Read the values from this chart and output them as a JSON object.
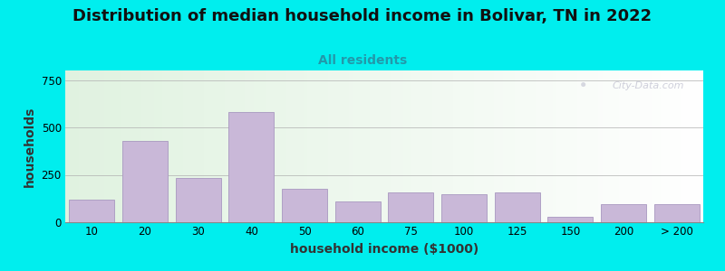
{
  "title": "Distribution of median household income in Bolivar, TN in 2022",
  "subtitle": "All residents",
  "xlabel": "household income ($1000)",
  "ylabel": "households",
  "background_outer": "#00EEEE",
  "bar_color": "#c9b8d8",
  "bar_edge_color": "#a898c0",
  "title_fontsize": 13,
  "subtitle_fontsize": 10,
  "subtitle_color": "#2299aa",
  "xlabel_fontsize": 10,
  "ylabel_fontsize": 10,
  "categories": [
    "10",
    "20",
    "30",
    "40",
    "50",
    "60",
    "75",
    "100",
    "125",
    "150",
    "200",
    "> 200"
  ],
  "values": [
    120,
    430,
    235,
    580,
    175,
    110,
    155,
    148,
    155,
    30,
    95,
    95
  ],
  "ylim": [
    0,
    800
  ],
  "yticks": [
    0,
    250,
    500,
    750
  ],
  "bar_positions": [
    1,
    2,
    3,
    4,
    5,
    6,
    7,
    8,
    9,
    10,
    11,
    12
  ],
  "bar_widths": [
    0.85,
    0.85,
    0.85,
    0.85,
    0.85,
    0.85,
    0.85,
    0.85,
    0.85,
    0.85,
    0.85,
    0.85
  ],
  "watermark": "City-Data.com"
}
